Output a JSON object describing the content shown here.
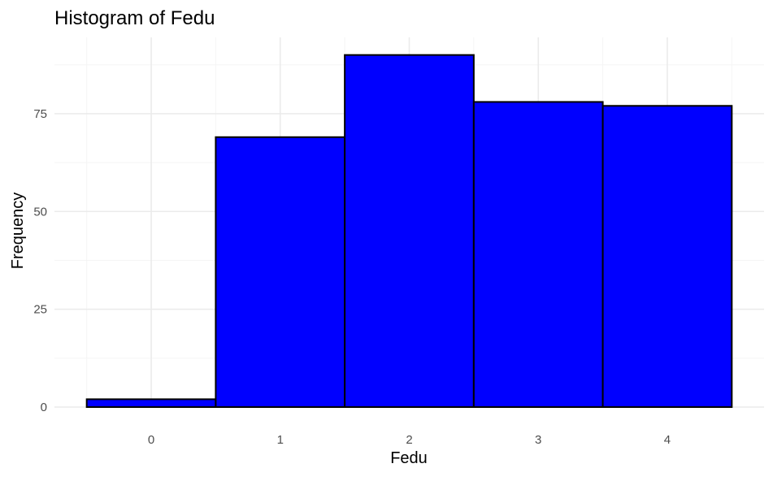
{
  "chart_data": {
    "type": "bar",
    "title": "Histogram of Fedu",
    "xlabel": "Fedu",
    "ylabel": "Frequency",
    "categories": [
      "0",
      "1",
      "2",
      "3",
      "4"
    ],
    "x": [
      0,
      1,
      2,
      3,
      4
    ],
    "values": [
      2,
      69,
      90,
      78,
      77
    ],
    "bin_width": 1,
    "xlim": [
      -0.75,
      4.75
    ],
    "ylim": [
      0,
      94.5
    ],
    "x_ticks": [
      "0",
      "1",
      "2",
      "3",
      "4"
    ],
    "y_ticks": [
      "0",
      "25",
      "50",
      "75"
    ],
    "y_tick_values": [
      0,
      25,
      50,
      75
    ],
    "y_minor_values": [
      12.5,
      37.5,
      62.5,
      87.5
    ],
    "x_minor_values": [
      -0.5,
      0.5,
      1.5,
      2.5,
      3.5,
      4.5
    ],
    "grid": true,
    "legend": "none",
    "colors": {
      "bar_fill": "#0000ff",
      "bar_outline": "#000000",
      "grid_major": "#ebebeb",
      "grid_minor": "#f5f5f5",
      "tick_label": "#4d4d4d",
      "background": "#ffffff"
    }
  }
}
